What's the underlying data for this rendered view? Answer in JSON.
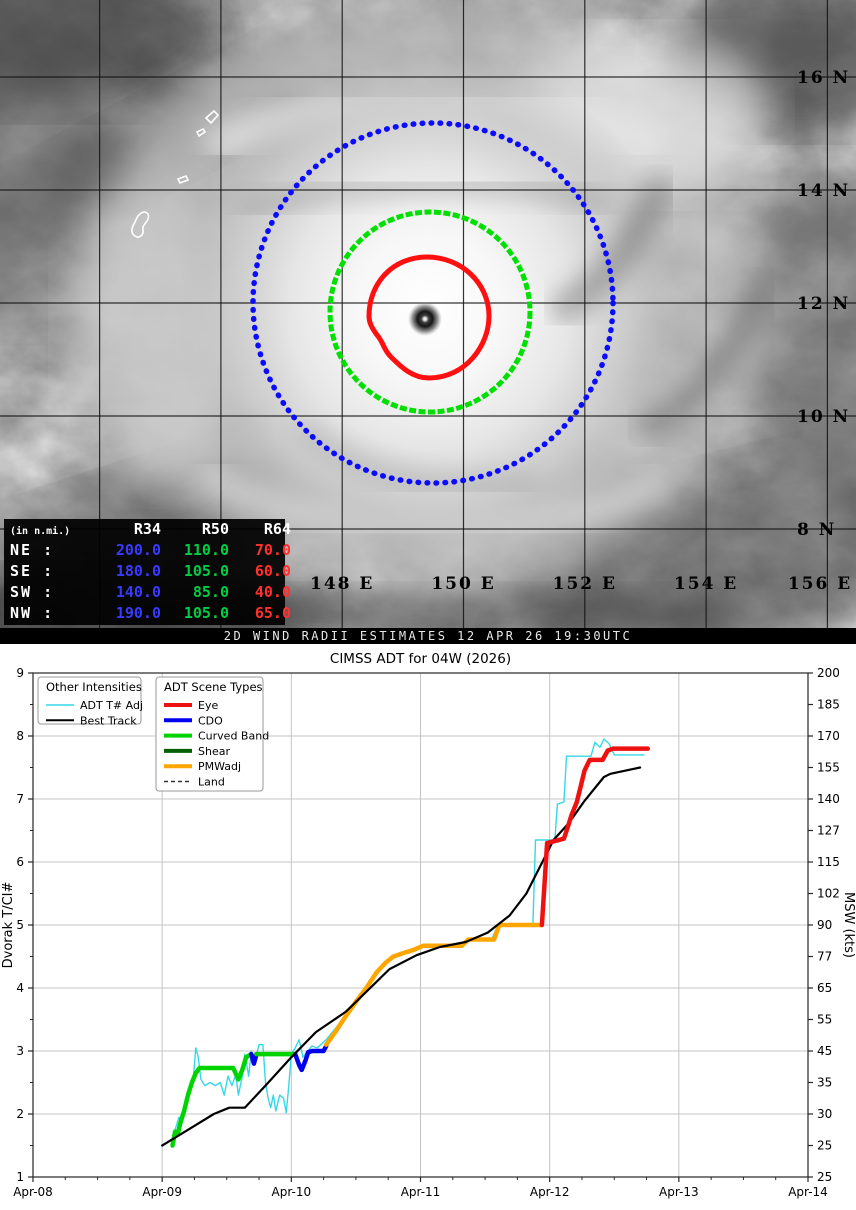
{
  "satellite": {
    "caption": "2D WIND RADII ESTIMATES 12 APR 26 19:30UTC",
    "corner_label": "2",
    "lat_labels": [
      "16 N",
      "14 N",
      "12 N",
      "10 N",
      "8 N"
    ],
    "lon_labels": [
      "148 E",
      "150 E",
      "152 E",
      "154 E",
      "156 E"
    ],
    "rings": {
      "r34_color": "#0b0bff",
      "r50_color": "#00e000",
      "r64_color": "#ff0f0f"
    },
    "radii_table": {
      "unit_label": "(in n.mi.)",
      "columns": [
        "R34",
        "R50",
        "R64"
      ],
      "rows": [
        {
          "quadrant": "NE :",
          "r34": "200.0",
          "r50": "110.0",
          "r64": "70.0"
        },
        {
          "quadrant": "SE :",
          "r34": "180.0",
          "r50": "105.0",
          "r64": "60.0"
        },
        {
          "quadrant": "SW :",
          "r34": "140.0",
          "r50": "85.0",
          "r64": "40.0"
        },
        {
          "quadrant": "NW :",
          "r34": "190.0",
          "r50": "105.0",
          "r64": "65.0"
        }
      ]
    }
  },
  "chart_data": {
    "type": "line",
    "title": "CIMSS ADT for 04W (2026)",
    "xlabel": "Date",
    "ylabel_left": "Dvorak T/CI#",
    "ylabel_right": "MSW (kts)",
    "ylim": [
      1,
      9
    ],
    "xlim_days": [
      0,
      6
    ],
    "grid": true,
    "x_ticks": [
      {
        "pos": 0,
        "label": "Apr-08"
      },
      {
        "pos": 1,
        "label": "Apr-09"
      },
      {
        "pos": 2,
        "label": "Apr-10"
      },
      {
        "pos": 3,
        "label": "Apr-11"
      },
      {
        "pos": 4,
        "label": "Apr-12"
      },
      {
        "pos": 5,
        "label": "Apr-13"
      },
      {
        "pos": 6,
        "label": "Apr-14"
      }
    ],
    "y_left_ticks": [
      9,
      8,
      7,
      6,
      5,
      4,
      3,
      2,
      1
    ],
    "y_right_labels": [
      "200",
      "185",
      "170",
      "155",
      "140",
      "127",
      "115",
      "102",
      "90",
      "77",
      "65",
      "55",
      "45",
      "35",
      "30",
      "25",
      "25"
    ],
    "legends": [
      {
        "title": "Other Intensities",
        "items": [
          {
            "label": "ADT T# Adj",
            "color": "#35d8e8",
            "width": 1.5,
            "dash": null
          },
          {
            "label": "Best Track",
            "color": "#000000",
            "width": 2,
            "dash": null
          }
        ]
      },
      {
        "title": "ADT Scene Types",
        "items": [
          {
            "label": "Eye",
            "color": "#ee1111",
            "width": 4,
            "dash": null
          },
          {
            "label": "CDO",
            "color": "#0000ee",
            "width": 4,
            "dash": null
          },
          {
            "label": "Curved Band",
            "color": "#00d400",
            "width": 4,
            "dash": null
          },
          {
            "label": "Shear",
            "color": "#056005",
            "width": 4,
            "dash": null
          },
          {
            "label": "PMWadj",
            "color": "#ffa500",
            "width": 4,
            "dash": null
          },
          {
            "label": "Land",
            "color": "#333333",
            "width": 1.5,
            "dash": "4 3"
          }
        ]
      }
    ],
    "series": [
      {
        "name": "ADT T# Adj",
        "color": "#35d8e8",
        "width": 1.4,
        "dash": null,
        "points": [
          [
            1.08,
            1.6
          ],
          [
            1.1,
            1.75
          ],
          [
            1.13,
            1.95
          ],
          [
            1.15,
            1.85
          ],
          [
            1.18,
            2.1
          ],
          [
            1.21,
            2.3
          ],
          [
            1.24,
            2.55
          ],
          [
            1.26,
            3.05
          ],
          [
            1.28,
            2.9
          ],
          [
            1.3,
            2.55
          ],
          [
            1.33,
            2.45
          ],
          [
            1.37,
            2.5
          ],
          [
            1.41,
            2.45
          ],
          [
            1.45,
            2.5
          ],
          [
            1.48,
            2.3
          ],
          [
            1.51,
            2.6
          ],
          [
            1.54,
            2.45
          ],
          [
            1.57,
            2.62
          ],
          [
            1.59,
            2.3
          ],
          [
            1.62,
            2.6
          ],
          [
            1.64,
            2.95
          ],
          [
            1.67,
            2.6
          ],
          [
            1.69,
            3.0
          ],
          [
            1.72,
            2.85
          ],
          [
            1.75,
            3.1
          ],
          [
            1.78,
            3.1
          ],
          [
            1.8,
            2.5
          ],
          [
            1.82,
            2.25
          ],
          [
            1.84,
            2.1
          ],
          [
            1.86,
            2.3
          ],
          [
            1.88,
            2.05
          ],
          [
            1.91,
            2.3
          ],
          [
            1.94,
            2.25
          ],
          [
            1.96,
            2.02
          ],
          [
            1.98,
            2.45
          ],
          [
            2.0,
            2.95
          ],
          [
            2.03,
            3.05
          ],
          [
            2.06,
            3.18
          ],
          [
            2.09,
            2.9
          ],
          [
            2.12,
            2.98
          ],
          [
            2.16,
            3.08
          ],
          [
            2.2,
            3.05
          ],
          [
            2.27,
            3.18
          ],
          [
            2.35,
            3.38
          ],
          [
            2.45,
            3.65
          ],
          [
            2.55,
            3.95
          ],
          [
            2.65,
            4.25
          ],
          [
            2.75,
            4.45
          ],
          [
            2.85,
            4.55
          ],
          [
            2.95,
            4.62
          ],
          [
            3.05,
            4.67
          ],
          [
            3.3,
            4.67
          ],
          [
            3.37,
            4.77
          ],
          [
            3.55,
            4.77
          ],
          [
            3.6,
            5.0
          ],
          [
            3.87,
            5.0
          ],
          [
            3.89,
            6.35
          ],
          [
            4.04,
            6.35
          ],
          [
            4.06,
            6.92
          ],
          [
            4.11,
            6.95
          ],
          [
            4.13,
            7.68
          ],
          [
            4.32,
            7.68
          ],
          [
            4.35,
            7.9
          ],
          [
            4.39,
            7.82
          ],
          [
            4.42,
            7.95
          ],
          [
            4.46,
            7.88
          ],
          [
            4.5,
            7.7
          ],
          [
            4.73,
            7.7
          ]
        ]
      },
      {
        "name": "Curved Band",
        "color": "#00d400",
        "width": 4.5,
        "dash": null,
        "points": [
          [
            1.08,
            1.5
          ],
          [
            1.1,
            1.72
          ],
          [
            1.12,
            1.68
          ],
          [
            1.14,
            1.85
          ],
          [
            1.17,
            2.05
          ],
          [
            1.2,
            2.3
          ],
          [
            1.23,
            2.5
          ],
          [
            1.26,
            2.65
          ],
          [
            1.29,
            2.73
          ],
          [
            1.55,
            2.73
          ],
          [
            1.59,
            2.55
          ],
          [
            1.62,
            2.7
          ],
          [
            1.65,
            2.9
          ],
          [
            1.69,
            2.95
          ]
        ]
      },
      {
        "name": "CDO",
        "color": "#0000ee",
        "width": 4.5,
        "dash": null,
        "points": [
          [
            1.69,
            2.95
          ],
          [
            1.71,
            2.8
          ],
          [
            1.73,
            2.95
          ]
        ]
      },
      {
        "name": "Curved Band",
        "color": "#00d400",
        "width": 4.5,
        "dash": null,
        "points": [
          [
            1.73,
            2.95
          ],
          [
            2.03,
            2.95
          ]
        ]
      },
      {
        "name": "CDO",
        "color": "#0000ee",
        "width": 4.5,
        "dash": null,
        "points": [
          [
            2.03,
            2.95
          ],
          [
            2.06,
            2.78
          ],
          [
            2.08,
            2.7
          ],
          [
            2.11,
            2.85
          ],
          [
            2.13,
            2.98
          ],
          [
            2.16,
            3.0
          ],
          [
            2.25,
            3.0
          ],
          [
            2.27,
            3.08
          ]
        ]
      },
      {
        "name": "PMWadj",
        "color": "#ffa500",
        "width": 4.5,
        "dash": null,
        "points": [
          [
            2.27,
            3.1
          ],
          [
            2.34,
            3.3
          ],
          [
            2.42,
            3.55
          ],
          [
            2.5,
            3.78
          ],
          [
            2.58,
            4.0
          ],
          [
            2.66,
            4.25
          ],
          [
            2.73,
            4.4
          ],
          [
            2.79,
            4.5
          ],
          [
            2.86,
            4.55
          ],
          [
            2.94,
            4.6
          ],
          [
            3.02,
            4.67
          ],
          [
            3.32,
            4.67
          ],
          [
            3.37,
            4.77
          ],
          [
            3.57,
            4.77
          ],
          [
            3.61,
            5.0
          ],
          [
            3.94,
            5.0
          ]
        ]
      },
      {
        "name": "Best Track",
        "color": "#000000",
        "width": 2.2,
        "dash": null,
        "points": [
          [
            1.0,
            1.5
          ],
          [
            1.2,
            1.75
          ],
          [
            1.4,
            2.0
          ],
          [
            1.52,
            2.1
          ],
          [
            1.64,
            2.1
          ],
          [
            1.8,
            2.45
          ],
          [
            2.0,
            2.9
          ],
          [
            2.19,
            3.3
          ],
          [
            2.42,
            3.62
          ],
          [
            2.6,
            3.98
          ],
          [
            2.76,
            4.3
          ],
          [
            2.97,
            4.52
          ],
          [
            3.15,
            4.65
          ],
          [
            3.35,
            4.73
          ],
          [
            3.52,
            4.88
          ],
          [
            3.69,
            5.15
          ],
          [
            3.82,
            5.5
          ],
          [
            4.03,
            6.35
          ],
          [
            4.15,
            6.62
          ],
          [
            4.27,
            6.97
          ],
          [
            4.42,
            7.35
          ],
          [
            4.47,
            7.4
          ],
          [
            4.7,
            7.5
          ]
        ]
      },
      {
        "name": "Eye",
        "color": "#ee1111",
        "width": 4.5,
        "dash": null,
        "points": [
          [
            3.94,
            5.0
          ],
          [
            3.98,
            6.3
          ],
          [
            4.11,
            6.37
          ],
          [
            4.14,
            6.55
          ],
          [
            4.17,
            6.75
          ],
          [
            4.21,
            6.95
          ],
          [
            4.24,
            7.2
          ],
          [
            4.27,
            7.45
          ],
          [
            4.31,
            7.62
          ],
          [
            4.41,
            7.62
          ],
          [
            4.45,
            7.77
          ],
          [
            4.49,
            7.8
          ],
          [
            4.76,
            7.8
          ]
        ]
      }
    ]
  }
}
